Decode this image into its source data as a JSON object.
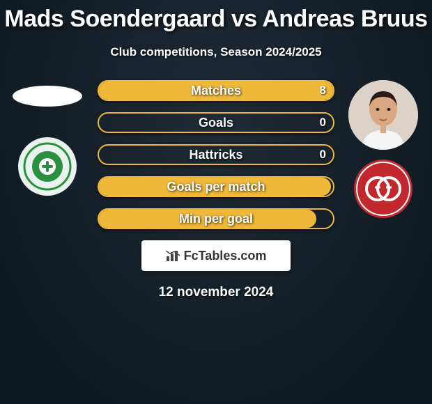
{
  "header": {
    "title": "Mads Soendergaard vs Andreas Bruus",
    "subtitle": "Club competitions, Season 2024/2025"
  },
  "background": {
    "color_start": "#1f2b36",
    "color_end": "#0e1820"
  },
  "players": {
    "left": {
      "name": "Mads Soendergaard",
      "avatar_bg": "#ffffff",
      "club_outer": "#e9f2ec",
      "club_inner": "#2a8f3f",
      "club_accent": "#1f5f2c"
    },
    "right": {
      "name": "Andreas Bruus",
      "avatar_bg": "#dcd2c8",
      "avatar_skin": "#d9a780",
      "avatar_hair": "#2a1c14",
      "avatar_shirt": "#f5f5f5",
      "club_outer": "#c1272d",
      "club_inner": "#ffffff"
    }
  },
  "bars": {
    "border_color": "#f0b838",
    "fill_color": "#f0b838",
    "text_color": "#ffffff",
    "height": 30,
    "radius": 16,
    "fontsize": 18,
    "rows": [
      {
        "label": "Matches",
        "left": "",
        "right": "8",
        "fill_pct": 100
      },
      {
        "label": "Goals",
        "left": "",
        "right": "0",
        "fill_pct": 0
      },
      {
        "label": "Hattricks",
        "left": "",
        "right": "0",
        "fill_pct": 0
      },
      {
        "label": "Goals per match",
        "left": "",
        "right": "",
        "fill_pct": 99
      },
      {
        "label": "Min per goal",
        "left": "",
        "right": "",
        "fill_pct": 93
      }
    ]
  },
  "brand": {
    "text": "FcTables.com",
    "icon": "bar-chart-icon"
  },
  "date": "12 november 2024"
}
